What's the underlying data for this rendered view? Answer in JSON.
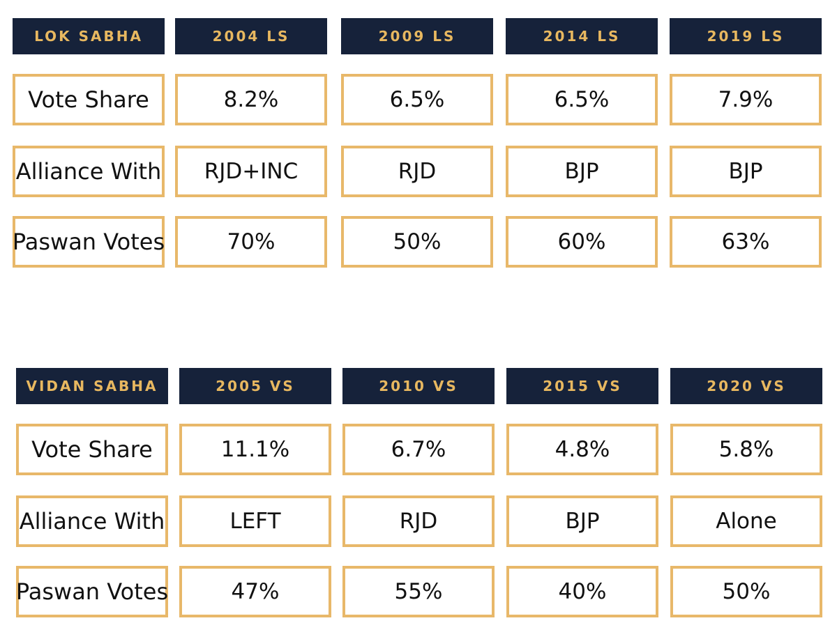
{
  "chart_data": [
    {
      "type": "table",
      "header": [
        "LOK SABHA",
        "2004 LS",
        "2009 LS",
        "2014 LS",
        "2019 LS"
      ],
      "rows": [
        {
          "label": "Vote Share",
          "values": [
            "8.2%",
            "6.5%",
            "6.5%",
            "7.9%"
          ]
        },
        {
          "label": "Alliance With",
          "values": [
            "RJD+INC",
            "RJD",
            "BJP",
            "BJP"
          ]
        },
        {
          "label": "Paswan Votes",
          "values": [
            "70%",
            "50%",
            "60%",
            "63%"
          ]
        }
      ]
    },
    {
      "type": "table",
      "header": [
        "VIDAN SABHA",
        "2005 VS",
        "2010 VS",
        "2015 VS",
        "2020 VS"
      ],
      "rows": [
        {
          "label": "Vote Share",
          "values": [
            "11.1%",
            "6.7%",
            "4.8%",
            "5.8%"
          ]
        },
        {
          "label": "Alliance With",
          "values": [
            "LEFT",
            "RJD",
            "BJP",
            "Alone"
          ]
        },
        {
          "label": "Paswan Votes",
          "values": [
            "47%",
            "55%",
            "40%",
            "50%"
          ]
        }
      ]
    }
  ],
  "colors": {
    "header_bg": "#16223a",
    "header_text": "#e8b860",
    "cell_border": "#e8b86a"
  }
}
